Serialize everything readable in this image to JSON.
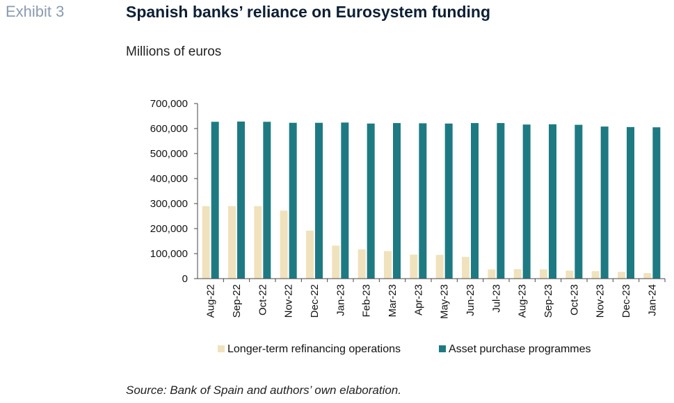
{
  "header": {
    "exhibit": "Exhibit 3",
    "title": "Spanish banks’ reliance on Eurosystem funding",
    "subtitle": "Millions of euros"
  },
  "footer": {
    "source": "Source: Bank of Spain and authors’ own elaboration."
  },
  "chart_data": {
    "type": "bar",
    "categories": [
      "Aug-22",
      "Sep-22",
      "Oct-22",
      "Nov-22",
      "Dec-22",
      "Jan-23",
      "Feb-23",
      "Mar-23",
      "Apr-23",
      "May-23",
      "Jun-23",
      "Jul-23",
      "Aug-23",
      "Sep-23",
      "Oct-23",
      "Nov-23",
      "Dec-23",
      "Jan-24"
    ],
    "series": [
      {
        "name": "Longer-term refinancing operations",
        "color": "#f0e2bd",
        "values": [
          290000,
          290000,
          290000,
          272000,
          192000,
          132000,
          117000,
          110000,
          96000,
          95000,
          87000,
          37000,
          38000,
          37000,
          32000,
          30000,
          27000,
          22000
        ]
      },
      {
        "name": "Asset purchase programmes",
        "color": "#1e7a82",
        "values": [
          627000,
          628000,
          627000,
          623000,
          623000,
          624000,
          620000,
          622000,
          621000,
          620000,
          622000,
          622000,
          616000,
          617000,
          615000,
          608000,
          606000,
          605000
        ]
      }
    ],
    "yticks": [
      "0",
      "100,000",
      "200,000",
      "300,000",
      "400,000",
      "500,000",
      "600,000",
      "700,000"
    ],
    "ylim": [
      0,
      700000
    ],
    "grid": false,
    "legend_position": "bottom"
  }
}
